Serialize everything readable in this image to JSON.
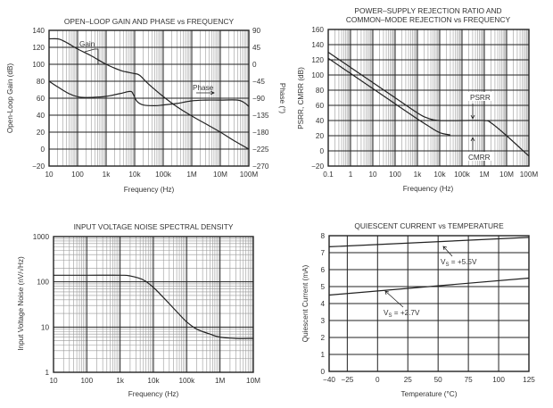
{
  "chart_data": [
    {
      "id": "gain-phase",
      "type": "line",
      "title": "OPEN–LOOP GAIN AND PHASE vs FREQUENCY",
      "xlabel": "Frequency (Hz)",
      "ylabel": "Open-Loop Gain (dB)",
      "y2label": "Phase (°)",
      "xscale": "log",
      "xlim": [
        10,
        100000000
      ],
      "ylim": [
        -20,
        140
      ],
      "y2lim": [
        -270,
        90
      ],
      "grid": true,
      "x_ticks": [
        10,
        100,
        1000,
        10000,
        100000,
        1000000,
        10000000,
        100000000
      ],
      "x_tick_labels": [
        "10",
        "100",
        "1k",
        "10k",
        "100k",
        "1M",
        "10M",
        "100M"
      ],
      "y_ticks": [
        -20,
        0,
        20,
        40,
        60,
        80,
        100,
        120,
        140
      ],
      "y_tick_labels": [
        "−20",
        "0",
        "20",
        "40",
        "60",
        "80",
        "100",
        "120",
        "140"
      ],
      "y2_ticks": [
        -270,
        -225,
        -180,
        -135,
        -90,
        -45,
        0,
        45,
        90
      ],
      "y2_tick_labels": [
        "−270",
        "−225",
        "−180",
        "−135",
        "−90",
        "−45",
        "0",
        "45",
        "90"
      ],
      "series": [
        {
          "name": "Gain",
          "axis": "left",
          "x": [
            10,
            20,
            30,
            50,
            100,
            300,
            1000,
            3000,
            5000,
            10000,
            15000,
            30000,
            100000,
            300000,
            1000000,
            3000000,
            10000000,
            30000000,
            100000000
          ],
          "y": [
            130,
            130,
            128,
            124,
            118,
            110,
            100,
            93,
            91,
            89,
            87,
            77,
            62,
            50,
            39,
            30,
            20,
            10,
            0
          ]
        },
        {
          "name": "Phase",
          "axis": "right",
          "x": [
            10,
            20,
            50,
            100,
            200,
            500,
            1000,
            3000,
            7000,
            9000,
            12000,
            20000,
            50000,
            100000,
            300000,
            1000000,
            3000000,
            10000000,
            40000000,
            70000000,
            100000000
          ],
          "y": [
            -45,
            -60,
            -78,
            -86,
            -88,
            -87,
            -85,
            -78,
            -72,
            -80,
            -98,
            -108,
            -110,
            -108,
            -104,
            -97,
            -95,
            -95,
            -95,
            -102,
            -112
          ]
        }
      ],
      "annotations": [
        {
          "text": "Gain",
          "target": "Gain"
        },
        {
          "text": "Phase",
          "target": "Phase"
        }
      ]
    },
    {
      "id": "psrr-cmrr",
      "type": "line",
      "title": [
        "POWER–SUPPLY REJECTION RATIO AND",
        "COMMON–MODE REJECTION vs FREQUENCY"
      ],
      "xlabel": "Frequency (Hz)",
      "ylabel": "PSRR, CMRR (dB)",
      "xscale": "log",
      "xlim": [
        0.1,
        100000000
      ],
      "ylim": [
        -20,
        160
      ],
      "grid": true,
      "x_ticks": [
        0.1,
        1,
        10,
        100,
        1000,
        10000,
        100000,
        1000000,
        10000000,
        100000000
      ],
      "x_tick_labels": [
        "0.1",
        "1",
        "10",
        "100",
        "1k",
        "10k",
        "100k",
        "1M",
        "10M",
        "100M"
      ],
      "y_ticks": [
        -20,
        0,
        20,
        40,
        60,
        80,
        100,
        120,
        140,
        160
      ],
      "y_tick_labels": [
        "−20",
        "0",
        "20",
        "40",
        "60",
        "80",
        "100",
        "120",
        "140",
        "160"
      ],
      "series": [
        {
          "name": "PSRR",
          "x": [
            0.1,
            1,
            10,
            100,
            1000,
            3000,
            10000,
            100000,
            1000000,
            2000000,
            10000000,
            100000000
          ],
          "y": [
            130,
            110,
            90,
            70,
            50,
            43,
            40,
            40,
            40,
            37,
            20,
            -7
          ]
        },
        {
          "name": "CMRR",
          "x": [
            0.1,
            1,
            10,
            100,
            1000,
            3000,
            10000,
            30000
          ],
          "y": [
            122,
            102,
            82,
            62,
            42,
            33,
            24,
            21
          ]
        }
      ],
      "annotations": [
        {
          "text": "PSRR",
          "target": "PSRR"
        },
        {
          "text": "CMRR",
          "target": "CMRR"
        }
      ]
    },
    {
      "id": "noise",
      "type": "line",
      "title": "INPUT VOLTAGE NOISE SPECTRAL DENSITY",
      "xlabel": "Frequency (Hz)",
      "ylabel": "Input Voltage Noise (nV/√Hz)",
      "xscale": "log",
      "yscale": "log",
      "xlim": [
        10,
        10000000
      ],
      "ylim": [
        1,
        1000
      ],
      "grid": true,
      "x_ticks": [
        10,
        100,
        1000,
        10000,
        100000,
        1000000,
        10000000
      ],
      "x_tick_labels": [
        "10",
        "100",
        "1k",
        "10k",
        "100k",
        "1M",
        "10M"
      ],
      "y_ticks": [
        1,
        10,
        100,
        1000
      ],
      "y_tick_labels": [
        "1",
        "10",
        "100",
        "1000"
      ],
      "series": [
        {
          "name": "Noise",
          "x": [
            10,
            100,
            1000,
            2000,
            5000,
            10000,
            20000,
            50000,
            100000,
            200000,
            500000,
            1000000,
            3000000,
            10000000
          ],
          "y": [
            140,
            140,
            140,
            135,
            110,
            75,
            45,
            22,
            13,
            9,
            7,
            6,
            5.6,
            5.6
          ]
        }
      ]
    },
    {
      "id": "quiescent",
      "type": "line",
      "title": "QUIESCENT CURRENT vs TEMPERATURE",
      "xlabel": "Temperature (°C)",
      "ylabel": "Quiescent Current (mA)",
      "xlim": [
        -40,
        125
      ],
      "ylim": [
        0,
        8
      ],
      "grid": true,
      "x_ticks": [
        -40,
        -25,
        0,
        25,
        50,
        75,
        100,
        125
      ],
      "x_tick_labels": [
        "−40",
        "−25",
        "0",
        "25",
        "50",
        "75",
        "100",
        "125"
      ],
      "y_ticks": [
        0,
        1,
        2,
        3,
        4,
        5,
        6,
        7,
        8
      ],
      "y_tick_labels": [
        "0",
        "1",
        "2",
        "3",
        "4",
        "5",
        "6",
        "7",
        "8"
      ],
      "series": [
        {
          "name": "VS = +5.5V",
          "x": [
            -40,
            125
          ],
          "y": [
            7.35,
            7.9
          ]
        },
        {
          "name": "VS = +2.7V",
          "x": [
            -40,
            125
          ],
          "y": [
            4.5,
            5.5
          ]
        }
      ],
      "annotations": [
        {
          "text_main": "V",
          "text_sub": "S",
          "text_rest": " = +5.5V",
          "target": "VS = +5.5V"
        },
        {
          "text_main": "V",
          "text_sub": "S",
          "text_rest": " = +2.7V",
          "target": "VS = +2.7V"
        }
      ]
    }
  ]
}
